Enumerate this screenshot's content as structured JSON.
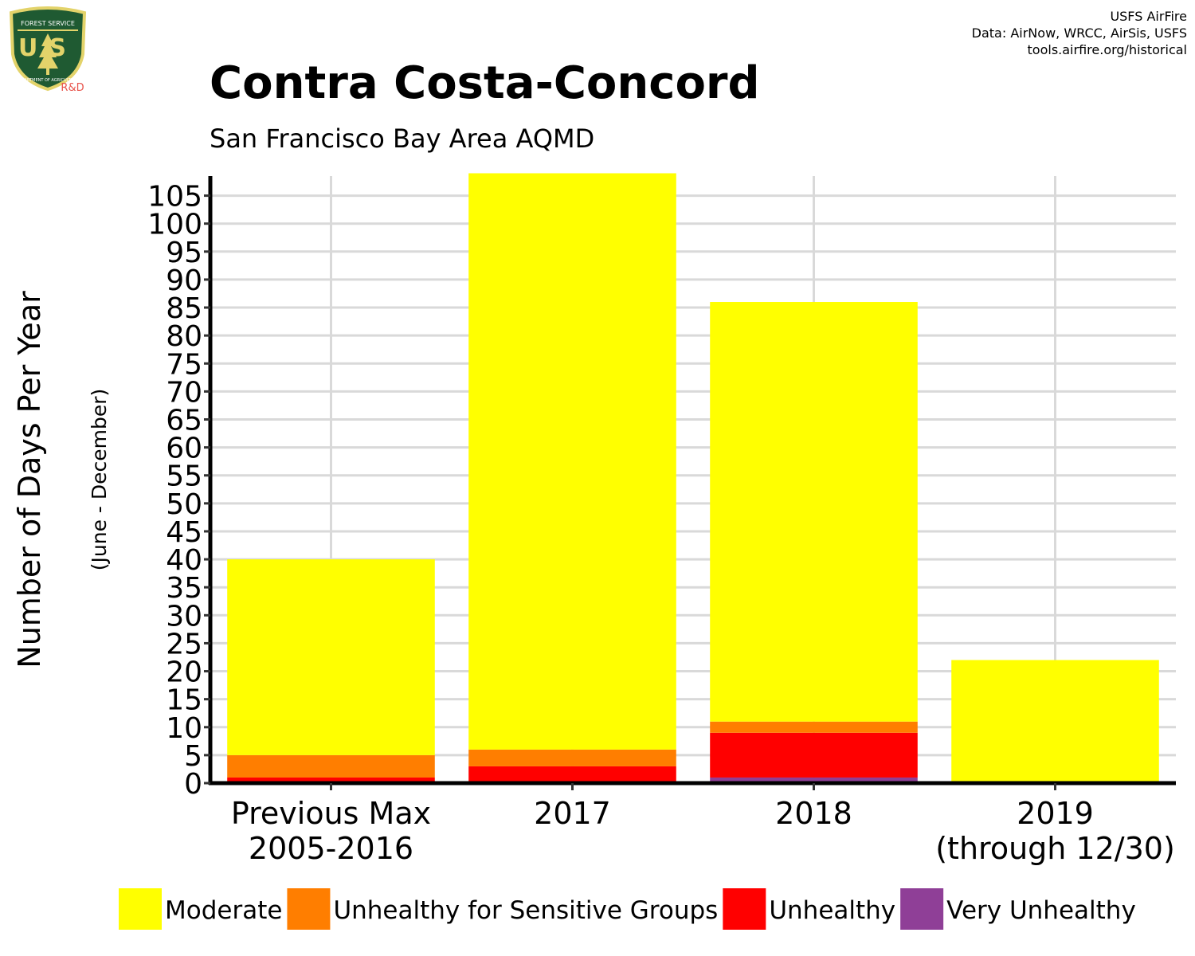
{
  "header": {
    "logo_text": {
      "top": "FOREST SERVICE",
      "mark": "US",
      "bottom": "DEPARTMENT OF AGRICULTURE",
      "suffix": "R&D"
    },
    "credits": [
      "USFS AirFire",
      "Data: AirNow, WRCC, AirSis, USFS",
      "tools.airfire.org/historical"
    ]
  },
  "colors": {
    "Moderate": "#ffff00",
    "Unhealthy for Sensitive Groups": "#ff7e00",
    "Unhealthy": "#ff0000",
    "Very Unhealthy": "#8f3f97",
    "grid": "#d9d9d9",
    "rd_text": "#e8524a"
  },
  "chart_data": {
    "type": "bar",
    "stacked": true,
    "title": "Contra Costa-Concord",
    "subtitle": "San Francisco Bay Area AQMD",
    "ylabel": "Number of Days Per Year",
    "ylabel_sub": "(June - December)",
    "xlabel": "",
    "categories": [
      [
        "Previous Max",
        "2005-2016"
      ],
      [
        "2017"
      ],
      [
        "2018"
      ],
      [
        "2019",
        "(through 12/30)"
      ]
    ],
    "ylim": [
      0,
      108.5
    ],
    "yticks": [
      0,
      5,
      10,
      15,
      20,
      25,
      30,
      35,
      40,
      45,
      50,
      55,
      60,
      65,
      70,
      75,
      80,
      85,
      90,
      95,
      100,
      105
    ],
    "grid": true,
    "legend_position": "bottom",
    "series": [
      {
        "name": "Very Unhealthy",
        "values": [
          0,
          0,
          1,
          0
        ]
      },
      {
        "name": "Unhealthy",
        "values": [
          1,
          3,
          8,
          0
        ]
      },
      {
        "name": "Unhealthy for Sensitive Groups",
        "values": [
          4,
          3,
          2,
          0
        ]
      },
      {
        "name": "Moderate",
        "values": [
          35,
          103,
          75,
          22
        ]
      }
    ],
    "legend": [
      "Moderate",
      "Unhealthy for Sensitive Groups",
      "Unhealthy",
      "Very Unhealthy"
    ]
  }
}
